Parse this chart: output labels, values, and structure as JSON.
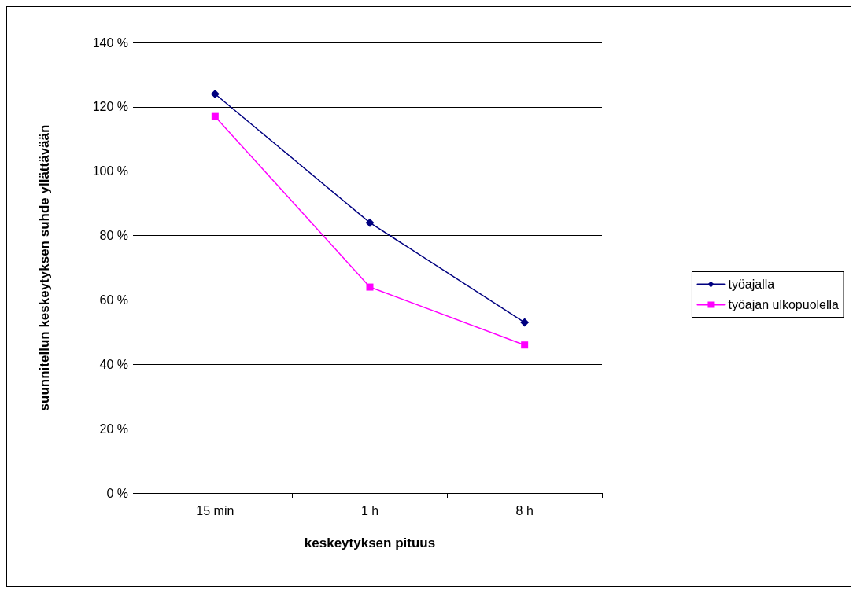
{
  "chart_data": {
    "type": "line",
    "xlabel": "keskeytyksen pituus",
    "ylabel": "suunnitellun keskeytyksen suhde yllättävään",
    "categories": [
      "15 min",
      "1 h",
      "8 h"
    ],
    "series": [
      {
        "name": "työajalla",
        "color": "#000080",
        "marker": "diamond",
        "values": [
          124,
          84,
          53
        ]
      },
      {
        "name": "työajan ulkopuolella",
        "color": "#ff00ff",
        "marker": "square",
        "values": [
          117,
          64,
          46
        ]
      }
    ],
    "ylim": [
      0,
      140
    ],
    "yticks": [
      {
        "value": 0,
        "label": "0 %"
      },
      {
        "value": 20,
        "label": "20 %"
      },
      {
        "value": 40,
        "label": "40 %"
      },
      {
        "value": 60,
        "label": "60 %"
      },
      {
        "value": 80,
        "label": "80 %"
      },
      {
        "value": 100,
        "label": "100 %"
      },
      {
        "value": 120,
        "label": "120 %"
      },
      {
        "value": 140,
        "label": "140 %"
      }
    ],
    "grid": "y",
    "legend": "right",
    "line_style": "solid"
  }
}
